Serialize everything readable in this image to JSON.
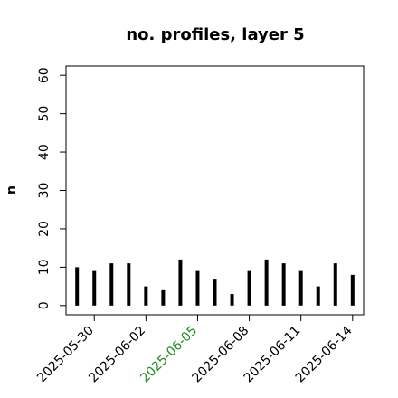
{
  "chart_data": {
    "type": "needle",
    "title": "no. profiles, layer 5",
    "y_label": "n",
    "x": [
      "2025-05-29",
      "2025-05-30",
      "2025-05-31",
      "2025-06-01",
      "2025-06-02",
      "2025-06-03",
      "2025-06-04",
      "2025-06-05",
      "2025-06-06",
      "2025-06-07",
      "2025-06-08",
      "2025-06-09",
      "2025-06-10",
      "2025-06-11",
      "2025-06-12",
      "2025-06-13",
      "2025-06-14"
    ],
    "values": [
      10,
      9,
      11,
      11,
      5,
      4,
      12,
      9,
      7,
      3,
      9,
      12,
      11,
      9,
      5,
      11,
      8
    ],
    "color": "#000000",
    "xlim": [
      "2025-05-28T08:38",
      "2025-06-14T15:22"
    ],
    "xticks": [
      "2025-05-30",
      "2025-06-02",
      "2025-06-05",
      "2025-06-08",
      "2025-06-11",
      "2025-06-14"
    ],
    "xtick_label_colors": [
      "#000000",
      "#000000",
      "#228b22",
      "#000000",
      "#000000",
      "#000000"
    ],
    "ylim": [
      -2.4,
      62.4
    ],
    "yticks": [
      0,
      10,
      20,
      30,
      40,
      50,
      60
    ]
  }
}
